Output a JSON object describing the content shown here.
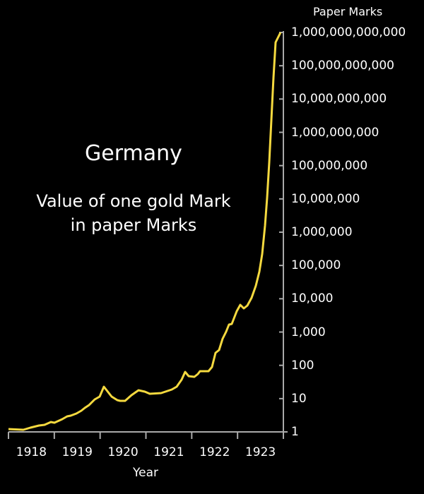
{
  "chart_data": {
    "type": "line",
    "title": "Germany",
    "subtitle_lines": [
      "Value of one gold Mark",
      "in paper Marks"
    ],
    "xlabel": "Year",
    "ylabel": "Paper Marks",
    "yscale": "log",
    "ylim": [
      1,
      1000000000000
    ],
    "xlim": [
      1918,
      1924
    ],
    "grid": false,
    "line_color": "#f5d93f",
    "x_tick_labels": [
      "1918",
      "1919",
      "1920",
      "1921",
      "1922",
      "1923"
    ],
    "y_tick_labels": [
      "1",
      "10",
      "100",
      "1,000",
      "10,000",
      "100,000",
      "1,000,000",
      "10,000,000",
      "100,000,000",
      "1,000,000,000",
      "10,000,000,000",
      "100,000,000,000",
      "1,000,000,000,000"
    ],
    "series": [
      {
        "name": "Value of one gold Mark in paper Marks",
        "points": [
          [
            1918.0,
            1.2
          ],
          [
            1918.33,
            1.15
          ],
          [
            1918.5,
            1.3
          ],
          [
            1918.67,
            1.4
          ],
          [
            1918.83,
            1.6
          ],
          [
            1919.0,
            1.7
          ],
          [
            1919.17,
            2.1
          ],
          [
            1919.33,
            2.7
          ],
          [
            1919.5,
            3.2
          ],
          [
            1919.67,
            4.0
          ],
          [
            1919.83,
            5.8
          ],
          [
            1920.0,
            9.0
          ],
          [
            1920.08,
            13
          ],
          [
            1920.17,
            23
          ],
          [
            1920.33,
            12
          ],
          [
            1920.5,
            9.5
          ],
          [
            1920.58,
            9.5
          ],
          [
            1920.75,
            14
          ],
          [
            1920.92,
            18
          ],
          [
            1921.08,
            17
          ],
          [
            1921.17,
            15
          ],
          [
            1921.42,
            15
          ],
          [
            1921.67,
            19
          ],
          [
            1921.83,
            23
          ],
          [
            1921.92,
            38
          ],
          [
            1922.0,
            63
          ],
          [
            1922.08,
            46
          ],
          [
            1922.25,
            46
          ],
          [
            1922.33,
            56
          ],
          [
            1922.5,
            69
          ],
          [
            1922.58,
            100
          ],
          [
            1922.67,
            270
          ],
          [
            1922.75,
            330
          ],
          [
            1922.83,
            830
          ],
          [
            1922.92,
            1800
          ],
          [
            1923.0,
            1900
          ],
          [
            1923.08,
            4700
          ],
          [
            1923.17,
            7700
          ],
          [
            1923.25,
            5600
          ],
          [
            1923.33,
            6800
          ],
          [
            1923.42,
            15000
          ],
          [
            1923.58,
            80000
          ],
          [
            1923.67,
            370000
          ],
          [
            1923.75,
            1200000
          ],
          [
            1923.83,
            100000000
          ],
          [
            1923.92,
            600000000000
          ],
          [
            1924.0,
            1000000000000
          ]
        ]
      }
    ]
  }
}
